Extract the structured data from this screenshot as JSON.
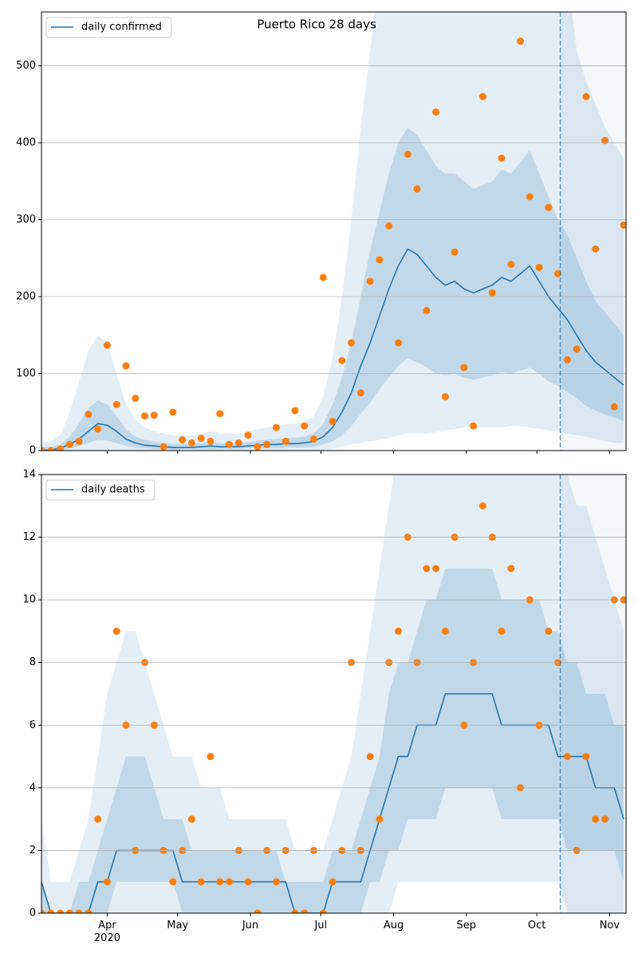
{
  "chart_data": [
    {
      "type": "line",
      "title": "Puerto Rico 28 days",
      "x": [
        "2020-03-04",
        "2020-03-08",
        "2020-03-12",
        "2020-03-16",
        "2020-03-20",
        "2020-03-24",
        "2020-03-28",
        "2020-04-01",
        "2020-04-05",
        "2020-04-09",
        "2020-04-13",
        "2020-04-17",
        "2020-04-21",
        "2020-04-25",
        "2020-04-29",
        "2020-05-03",
        "2020-05-07",
        "2020-05-11",
        "2020-05-15",
        "2020-05-19",
        "2020-05-23",
        "2020-05-27",
        "2020-05-31",
        "2020-06-04",
        "2020-06-08",
        "2020-06-12",
        "2020-06-16",
        "2020-06-20",
        "2020-06-24",
        "2020-06-28",
        "2020-07-02",
        "2020-07-06",
        "2020-07-10",
        "2020-07-14",
        "2020-07-18",
        "2020-07-22",
        "2020-07-26",
        "2020-07-30",
        "2020-08-03",
        "2020-08-07",
        "2020-08-11",
        "2020-08-15",
        "2020-08-19",
        "2020-08-23",
        "2020-08-27",
        "2020-08-31",
        "2020-09-04",
        "2020-09-08",
        "2020-09-12",
        "2020-09-16",
        "2020-09-20",
        "2020-09-24",
        "2020-09-28",
        "2020-10-02",
        "2020-10-06",
        "2020-10-10",
        "2020-10-14",
        "2020-10-18",
        "2020-10-22",
        "2020-10-26",
        "2020-10-30",
        "2020-11-03",
        "2020-11-07"
      ],
      "series": [
        {
          "name": "daily confirmed",
          "color": "#1f77b4",
          "values": [
            0,
            1,
            3,
            8,
            15,
            25,
            35,
            33,
            25,
            15,
            10,
            7,
            6,
            5,
            4,
            4,
            4,
            5,
            6,
            5,
            5,
            5,
            6,
            7,
            8,
            8,
            9,
            9,
            10,
            12,
            18,
            30,
            50,
            75,
            110,
            140,
            175,
            210,
            240,
            262,
            255,
            240,
            225,
            215,
            220,
            210,
            205,
            210,
            215,
            225,
            220,
            230,
            240,
            220,
            200,
            185,
            170,
            150,
            130,
            115,
            105,
            95,
            85
          ]
        }
      ],
      "points": {
        "color": "#ff7f0e",
        "values": [
          0,
          0,
          2,
          8,
          12,
          47,
          28,
          137,
          60,
          110,
          68,
          45,
          46,
          5,
          50,
          14,
          10,
          16,
          12,
          48,
          8,
          10,
          20,
          5,
          8,
          30,
          12,
          52,
          32,
          15,
          225,
          38,
          117,
          140,
          75,
          220,
          248,
          292,
          140,
          385,
          340,
          182,
          440,
          70,
          258,
          108,
          32,
          460,
          205,
          380,
          242,
          532,
          330,
          238,
          316,
          230,
          118,
          132,
          460,
          262,
          403,
          57,
          293
        ]
      },
      "band_color": "#1f77b4",
      "bands": [
        {
          "lower": [
            0,
            0,
            0,
            0,
            0,
            0,
            0,
            0,
            0,
            0,
            0,
            0,
            0,
            0,
            0,
            0,
            0,
            0,
            0,
            0,
            0,
            0,
            0,
            0,
            0,
            0,
            0,
            0,
            0,
            0,
            1,
            2,
            5,
            8,
            10,
            12,
            14,
            16,
            20,
            22,
            22,
            22,
            24,
            26,
            28,
            30,
            30,
            30,
            30,
            30,
            32,
            32,
            30,
            28,
            26,
            24,
            22,
            20,
            18,
            15,
            12,
            10,
            10
          ],
          "upper": [
            10,
            12,
            20,
            50,
            90,
            130,
            150,
            140,
            100,
            60,
            40,
            30,
            25,
            22,
            20,
            20,
            20,
            22,
            25,
            22,
            22,
            22,
            25,
            28,
            30,
            32,
            34,
            35,
            38,
            45,
            70,
            120,
            200,
            300,
            420,
            520,
            620,
            620,
            620,
            620,
            620,
            620,
            620,
            620,
            620,
            620,
            620,
            620,
            620,
            620,
            620,
            620,
            620,
            620,
            620,
            620,
            620,
            520,
            480,
            450,
            420,
            400,
            380
          ]
        },
        {
          "lower": [
            0,
            0,
            1,
            3,
            6,
            10,
            14,
            13,
            10,
            6,
            4,
            3,
            2,
            2,
            1,
            2,
            2,
            2,
            2,
            2,
            2,
            2,
            3,
            3,
            3,
            3,
            4,
            4,
            4,
            5,
            8,
            12,
            20,
            32,
            48,
            62,
            80,
            95,
            110,
            120,
            115,
            108,
            100,
            98,
            100,
            95,
            92,
            95,
            98,
            102,
            100,
            104,
            108,
            100,
            90,
            84,
            76,
            68,
            58,
            52,
            47,
            43,
            38
          ],
          "upper": [
            4,
            5,
            8,
            18,
            35,
            55,
            65,
            60,
            45,
            28,
            18,
            14,
            12,
            10,
            9,
            9,
            9,
            10,
            11,
            10,
            10,
            10,
            11,
            13,
            14,
            15,
            16,
            17,
            18,
            22,
            35,
            60,
            95,
            140,
            200,
            260,
            310,
            360,
            400,
            420,
            410,
            390,
            370,
            360,
            360,
            350,
            340,
            345,
            350,
            365,
            360,
            375,
            390,
            360,
            330,
            300,
            280,
            250,
            220,
            195,
            180,
            165,
            150
          ]
        }
      ],
      "xlim": [
        "2020-03-04",
        "2020-11-08"
      ],
      "ylim": [
        0,
        570
      ],
      "yticks": [
        0,
        100,
        200,
        300,
        400,
        500
      ],
      "vline": "2020-10-11",
      "grid": true,
      "legend": "upper left"
    },
    {
      "type": "line",
      "x": [
        "2020-03-04",
        "2020-03-08",
        "2020-03-12",
        "2020-03-16",
        "2020-03-20",
        "2020-03-24",
        "2020-03-28",
        "2020-04-01",
        "2020-04-05",
        "2020-04-09",
        "2020-04-13",
        "2020-04-17",
        "2020-04-21",
        "2020-04-25",
        "2020-04-29",
        "2020-05-03",
        "2020-05-07",
        "2020-05-11",
        "2020-05-15",
        "2020-05-19",
        "2020-05-23",
        "2020-05-27",
        "2020-05-31",
        "2020-06-04",
        "2020-06-08",
        "2020-06-12",
        "2020-06-16",
        "2020-06-20",
        "2020-06-24",
        "2020-06-28",
        "2020-07-02",
        "2020-07-06",
        "2020-07-10",
        "2020-07-14",
        "2020-07-18",
        "2020-07-22",
        "2020-07-26",
        "2020-07-30",
        "2020-08-03",
        "2020-08-07",
        "2020-08-11",
        "2020-08-15",
        "2020-08-19",
        "2020-08-23",
        "2020-08-27",
        "2020-08-31",
        "2020-09-04",
        "2020-09-08",
        "2020-09-12",
        "2020-09-16",
        "2020-09-20",
        "2020-09-24",
        "2020-09-28",
        "2020-10-02",
        "2020-10-06",
        "2020-10-10",
        "2020-10-14",
        "2020-10-18",
        "2020-10-22",
        "2020-10-26",
        "2020-10-30",
        "2020-11-03",
        "2020-11-07"
      ],
      "series": [
        {
          "name": "daily deaths",
          "color": "#1f77b4",
          "values": [
            1,
            0,
            0,
            0,
            0,
            0,
            1,
            1,
            2,
            2,
            2,
            2,
            2,
            2,
            2,
            1,
            1,
            1,
            1,
            1,
            1,
            1,
            1,
            1,
            1,
            1,
            1,
            0,
            0,
            0,
            0,
            1,
            1,
            1,
            1,
            2,
            3,
            4,
            5,
            5,
            6,
            6,
            6,
            7,
            7,
            7,
            7,
            7,
            7,
            6,
            6,
            6,
            6,
            6,
            6,
            5,
            5,
            5,
            5,
            4,
            4,
            4,
            3
          ]
        }
      ],
      "points": {
        "color": "#ff7f0e",
        "values": [
          0,
          0,
          0,
          0,
          0,
          0,
          3,
          1,
          9,
          6,
          2,
          8,
          6,
          2,
          1,
          2,
          3,
          1,
          5,
          1,
          1,
          2,
          1,
          0,
          2,
          1,
          2,
          0,
          0,
          2,
          0,
          1,
          2,
          8,
          2,
          5,
          3,
          8,
          9,
          12,
          8,
          11,
          11,
          9,
          12,
          6,
          8,
          13,
          12,
          9,
          11,
          4,
          10,
          6,
          9,
          8,
          5,
          2,
          5,
          3,
          3,
          10,
          10
        ]
      },
      "band_color": "#1f77b4",
      "bands": [
        {
          "lower": [
            0,
            0,
            0,
            0,
            0,
            0,
            0,
            0,
            0,
            0,
            0,
            0,
            0,
            0,
            0,
            0,
            0,
            0,
            0,
            0,
            0,
            0,
            0,
            0,
            0,
            0,
            0,
            0,
            0,
            0,
            0,
            0,
            0,
            0,
            0,
            0,
            0,
            0,
            1,
            1,
            1,
            1,
            1,
            1,
            1,
            1,
            1,
            1,
            1,
            1,
            1,
            1,
            1,
            1,
            1,
            1,
            0,
            0,
            0,
            0,
            0,
            0,
            0
          ],
          "upper": [
            3,
            1,
            1,
            1,
            2,
            3,
            5,
            7,
            8,
            9,
            9,
            8,
            7,
            6,
            5,
            5,
            5,
            4,
            4,
            4,
            3,
            3,
            3,
            3,
            3,
            3,
            3,
            2,
            2,
            2,
            2,
            3,
            4,
            5,
            7,
            9,
            11,
            13,
            15,
            15,
            15,
            15,
            15,
            15,
            15,
            15,
            15,
            15,
            15,
            15,
            15,
            15,
            15,
            15,
            15,
            15,
            14,
            13,
            13,
            12,
            11,
            10,
            9
          ]
        },
        {
          "lower": [
            0,
            0,
            0,
            0,
            0,
            0,
            0,
            0,
            1,
            1,
            1,
            1,
            1,
            1,
            1,
            0,
            0,
            0,
            0,
            0,
            0,
            0,
            0,
            0,
            0,
            0,
            0,
            0,
            0,
            0,
            0,
            0,
            0,
            0,
            0,
            1,
            1,
            2,
            2,
            3,
            3,
            3,
            3,
            4,
            4,
            4,
            4,
            4,
            4,
            3,
            3,
            3,
            3,
            3,
            3,
            3,
            2,
            2,
            2,
            2,
            2,
            2,
            1
          ],
          "upper": [
            1,
            0,
            0,
            0,
            1,
            1,
            2,
            3,
            4,
            5,
            5,
            5,
            4,
            3,
            3,
            3,
            2,
            2,
            2,
            2,
            2,
            2,
            2,
            2,
            2,
            2,
            1,
            1,
            1,
            1,
            1,
            2,
            2,
            2,
            3,
            4,
            5,
            7,
            8,
            8,
            9,
            10,
            10,
            11,
            11,
            11,
            11,
            11,
            11,
            10,
            10,
            10,
            10,
            10,
            9,
            9,
            8,
            8,
            7,
            7,
            7,
            6,
            6
          ]
        }
      ],
      "xlim": [
        "2020-03-04",
        "2020-11-08"
      ],
      "ylim": [
        0,
        14
      ],
      "yticks": [
        0,
        2,
        4,
        6,
        8,
        10,
        12,
        14
      ],
      "xticks": [
        {
          "value": "2020-04-01",
          "label": "Apr\n2020"
        },
        {
          "value": "2020-05-01",
          "label": "May"
        },
        {
          "value": "2020-06-01",
          "label": "Jun"
        },
        {
          "value": "2020-07-01",
          "label": "Jul"
        },
        {
          "value": "2020-08-01",
          "label": "Aug"
        },
        {
          "value": "2020-09-01",
          "label": "Sep"
        },
        {
          "value": "2020-10-01",
          "label": "Oct"
        },
        {
          "value": "2020-11-01",
          "label": "Nov"
        }
      ],
      "vline": "2020-10-11",
      "grid": true,
      "legend": "upper left"
    }
  ]
}
